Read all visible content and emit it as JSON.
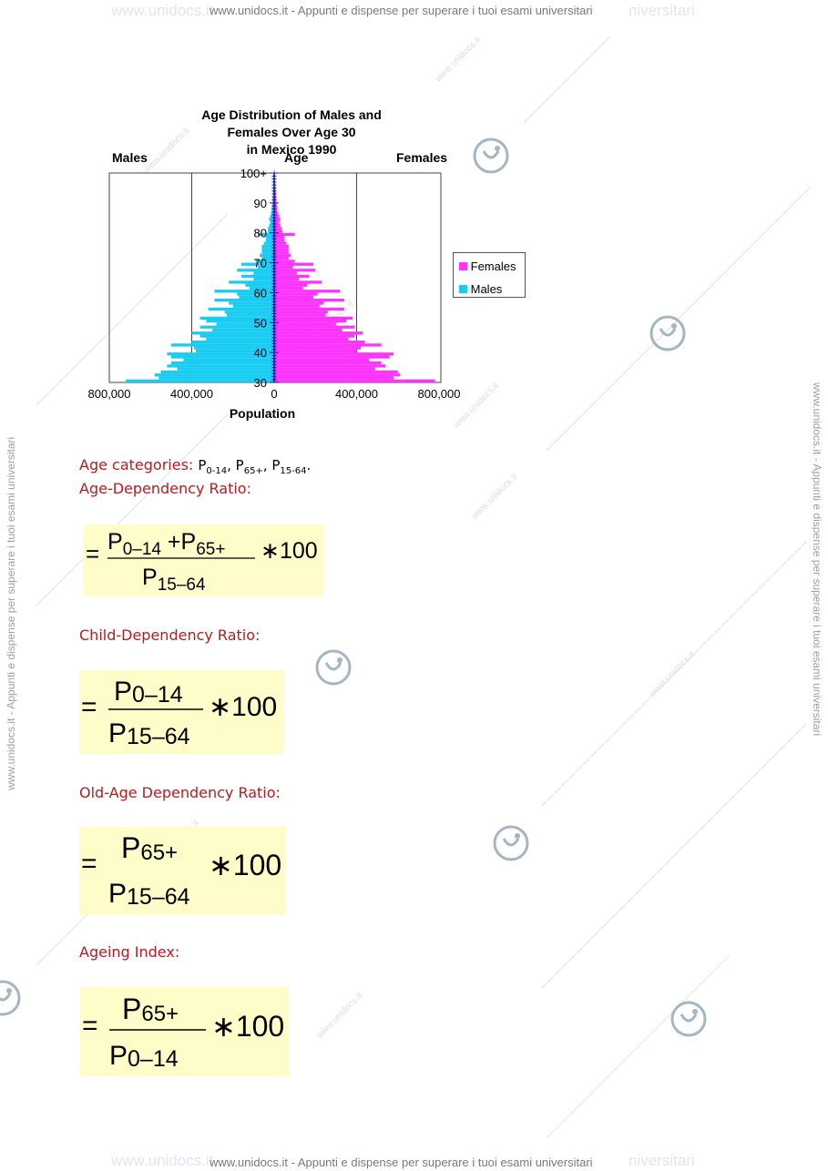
{
  "watermark": {
    "header": "www.unidocs.it - Appunti e dispense per superare i tuoi esami universitari",
    "footer": "www.unidocs.it - Appunti e dispense per superare i tuoi esami universitari",
    "side": "www.unidocs.it - Appunti e dispense per superare i tuoi esami universitari",
    "faint_left": "www.unidocs.it",
    "faint_right": "niversitari",
    "diag": "www.unidocs.it",
    "logo_icon": "unidocs-logo-icon"
  },
  "chart": {
    "header_males": "Males",
    "header_age": "Age",
    "header_females": "Females",
    "legend_females": "Females",
    "legend_males": "Males"
  },
  "chart_data": {
    "type": "bar",
    "title": "Age Distribution of Males and Females Over Age 30 in Mexico 1990",
    "title_line1": "Age Distribution of Males and Females Over Age 30",
    "title_line2": "in Mexico 1990",
    "xlabel": "Population",
    "ylabel": "Age",
    "x_ticks": [
      "800,000",
      "400,000",
      "0",
      "400,000",
      "800,000"
    ],
    "y_ticks": [
      "30",
      "40",
      "50",
      "60",
      "70",
      "80",
      "90",
      "100+"
    ],
    "xlim": [
      -800000,
      800000
    ],
    "ylim": [
      30,
      100
    ],
    "colors": {
      "females": "#ff33ff",
      "males": "#19ccf2"
    },
    "ages": [
      30,
      31,
      32,
      33,
      34,
      35,
      36,
      37,
      38,
      39,
      40,
      41,
      42,
      43,
      44,
      45,
      46,
      47,
      48,
      49,
      50,
      51,
      52,
      53,
      54,
      55,
      56,
      57,
      58,
      59,
      60,
      61,
      62,
      63,
      64,
      65,
      66,
      67,
      68,
      69,
      70,
      71,
      72,
      73,
      74,
      75,
      76,
      77,
      78,
      79,
      80,
      81,
      82,
      83,
      84,
      85,
      86,
      87,
      88,
      89,
      90,
      91,
      92,
      93,
      94,
      95,
      96,
      97,
      98,
      99,
      100
    ],
    "series": [
      {
        "name": "Males",
        "values": [
          720000,
          560000,
          580000,
          550000,
          470000,
          520000,
          500000,
          440000,
          500000,
          520000,
          380000,
          390000,
          500000,
          400000,
          330000,
          360000,
          400000,
          300000,
          360000,
          280000,
          330000,
          360000,
          230000,
          240000,
          320000,
          200000,
          220000,
          290000,
          170000,
          180000,
          290000,
          120000,
          140000,
          220000,
          100000,
          160000,
          100000,
          180000,
          80000,
          160000,
          90000,
          60000,
          70000,
          60000,
          60000,
          60000,
          50000,
          40000,
          40000,
          80000,
          30000,
          30000,
          25000,
          20000,
          25000,
          20000,
          15000,
          12000,
          12000,
          10000,
          8000,
          8000,
          6000,
          6000,
          5000,
          5000,
          4000,
          3000,
          3000,
          2000,
          2000
        ]
      },
      {
        "name": "Females",
        "values": [
          780000,
          580000,
          610000,
          600000,
          490000,
          540000,
          520000,
          460000,
          560000,
          580000,
          400000,
          420000,
          520000,
          440000,
          360000,
          390000,
          430000,
          330000,
          390000,
          300000,
          350000,
          380000,
          250000,
          260000,
          340000,
          220000,
          240000,
          340000,
          190000,
          210000,
          320000,
          140000,
          160000,
          230000,
          120000,
          170000,
          110000,
          200000,
          90000,
          190000,
          100000,
          70000,
          80000,
          70000,
          70000,
          70000,
          60000,
          50000,
          50000,
          100000,
          40000,
          35000,
          30000,
          25000,
          30000,
          25000,
          20000,
          15000,
          15000,
          12000,
          10000,
          10000,
          8000,
          8000,
          6000,
          6000,
          5000,
          4000,
          4000,
          3000,
          3000
        ]
      }
    ],
    "legend": "right"
  },
  "sections": [
    {
      "label": "Age categories: ",
      "inline": "P0-14, P65+, P15-64."
    },
    {
      "label": "Age-Dependency Ratio:"
    },
    {
      "label": "Child-Dependency Ratio:"
    },
    {
      "label": "Old-Age Dependency Ratio:"
    },
    {
      "label": "Ageing Index:"
    }
  ],
  "formulas": {
    "f1": {
      "eq": "=",
      "numerator": "P0–14 +P65+",
      "denominator": "P15–64",
      "times": "∗100"
    },
    "f2": {
      "eq": "=",
      "numerator": "P0–14",
      "denominator": "P15–64",
      "times": "∗100"
    },
    "f3": {
      "eq": "=",
      "numerator": "P65+",
      "denominator": "P15–64",
      "times": "∗100"
    },
    "f4": {
      "eq": "=",
      "numerator": "P65+",
      "denominator": "P0–14",
      "times": "∗100"
    }
  }
}
